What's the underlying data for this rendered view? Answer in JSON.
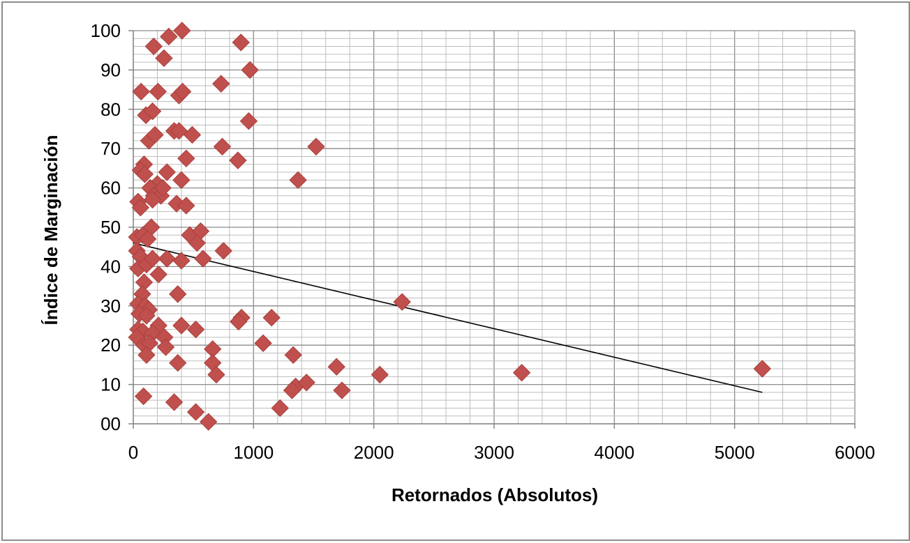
{
  "chart_data": {
    "type": "scatter",
    "xlabel": "Retornados (Absolutos)",
    "ylabel": "Índice de Marginación",
    "xlim": [
      0,
      6000
    ],
    "ylim": [
      0,
      100
    ],
    "x_major_step": 1000,
    "x_minor_step": 200,
    "y_major_step": 10,
    "y_minor_step": 2,
    "x_tick_labels": [
      "0",
      "1000",
      "2000",
      "3000",
      "4000",
      "5000",
      "6000"
    ],
    "y_tick_labels": [
      "00",
      "10",
      "20",
      "30",
      "40",
      "50",
      "60",
      "70",
      "80",
      "90",
      "100"
    ],
    "grid": true,
    "legend": "none",
    "marker": "diamond",
    "marker_color": "#c0504d",
    "trendline_color": "#000000",
    "trendline": {
      "x": [
        0,
        5230
      ],
      "y": [
        46.0,
        8.0
      ]
    },
    "series": [
      {
        "points": [
          [
            405,
            100
          ],
          [
            295,
            98.5
          ],
          [
            895,
            97
          ],
          [
            170,
            96
          ],
          [
            255,
            93
          ],
          [
            970,
            90
          ],
          [
            65,
            84.5
          ],
          [
            205,
            84.5
          ],
          [
            380,
            83.5
          ],
          [
            410,
            84.5
          ],
          [
            730,
            86.5
          ],
          [
            105,
            78.5
          ],
          [
            160,
            79.5
          ],
          [
            960,
            77
          ],
          [
            130,
            72
          ],
          [
            180,
            73.5
          ],
          [
            340,
            74.5
          ],
          [
            380,
            74.5
          ],
          [
            490,
            73.5
          ],
          [
            740,
            70.5
          ],
          [
            1520,
            70.5
          ],
          [
            870,
            67
          ],
          [
            440,
            67.5
          ],
          [
            90,
            66
          ],
          [
            60,
            64.5
          ],
          [
            95,
            63.5
          ],
          [
            280,
            64
          ],
          [
            200,
            61
          ],
          [
            400,
            62
          ],
          [
            1370,
            62
          ],
          [
            140,
            60
          ],
          [
            170,
            58
          ],
          [
            230,
            58
          ],
          [
            245,
            60
          ],
          [
            40,
            56.5
          ],
          [
            60,
            55
          ],
          [
            360,
            56
          ],
          [
            440,
            55.5
          ],
          [
            160,
            57
          ],
          [
            30,
            47.5
          ],
          [
            80,
            48
          ],
          [
            150,
            50
          ],
          [
            120,
            47
          ],
          [
            470,
            48
          ],
          [
            560,
            49
          ],
          [
            530,
            46
          ],
          [
            580,
            42
          ],
          [
            750,
            44
          ],
          [
            400,
            41.5
          ],
          [
            280,
            42
          ],
          [
            30,
            44
          ],
          [
            60,
            42.5
          ],
          [
            40,
            39.5
          ],
          [
            110,
            40.5
          ],
          [
            160,
            42
          ],
          [
            210,
            38
          ],
          [
            90,
            36
          ],
          [
            75,
            33
          ],
          [
            370,
            33
          ],
          [
            40,
            30.5
          ],
          [
            100,
            30
          ],
          [
            130,
            29
          ],
          [
            50,
            28
          ],
          [
            110,
            27.5
          ],
          [
            900,
            27
          ],
          [
            875,
            26
          ],
          [
            1150,
            27
          ],
          [
            2235,
            31
          ],
          [
            400,
            25
          ],
          [
            520,
            24
          ],
          [
            210,
            25
          ],
          [
            40,
            24
          ],
          [
            80,
            23.5
          ],
          [
            160,
            23
          ],
          [
            260,
            22
          ],
          [
            30,
            22
          ],
          [
            90,
            20
          ],
          [
            135,
            20.5
          ],
          [
            270,
            19.5
          ],
          [
            110,
            17.5
          ],
          [
            660,
            19
          ],
          [
            1080,
            20.5
          ],
          [
            660,
            15.5
          ],
          [
            370,
            15.5
          ],
          [
            1330,
            17.5
          ],
          [
            690,
            12.5
          ],
          [
            1690,
            14.5
          ],
          [
            2050,
            12.5
          ],
          [
            3230,
            13
          ],
          [
            5230,
            14
          ],
          [
            1350,
            9.5
          ],
          [
            1320,
            8.5
          ],
          [
            1440,
            10.5
          ],
          [
            1735,
            8.5
          ],
          [
            85,
            7
          ],
          [
            340,
            5.5
          ],
          [
            520,
            3
          ],
          [
            1220,
            4
          ],
          [
            625,
            0.5
          ]
        ]
      }
    ]
  }
}
